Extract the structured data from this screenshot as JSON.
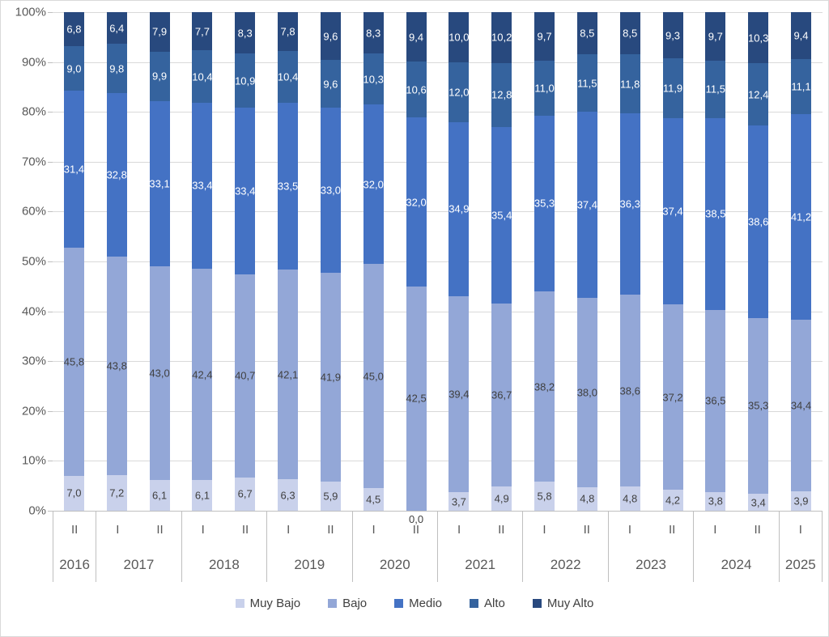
{
  "chart_data": {
    "type": "bar",
    "variant": "stacked-100-percent",
    "title": "",
    "xlabel": "",
    "ylabel": "",
    "ylim": [
      0,
      100
    ],
    "ytick_step": 10,
    "ytick_labels": [
      "0%",
      "10%",
      "20%",
      "30%",
      "40%",
      "50%",
      "60%",
      "70%",
      "80%",
      "90%",
      "100%"
    ],
    "grid": true,
    "legend_position": "bottom",
    "decimal_separator": ",",
    "x": [
      "2016-II",
      "2017-I",
      "2017-II",
      "2018-I",
      "2018-II",
      "2019-I",
      "2019-II",
      "2020-I",
      "2020-II",
      "2021-I",
      "2021-II",
      "2022-I",
      "2022-II",
      "2023-I",
      "2023-II",
      "2024-I",
      "2024-II",
      "2025-I"
    ],
    "categories": [
      {
        "year": "2016",
        "periods": [
          "II"
        ]
      },
      {
        "year": "2017",
        "periods": [
          "I",
          "II"
        ]
      },
      {
        "year": "2018",
        "periods": [
          "I",
          "II"
        ]
      },
      {
        "year": "2019",
        "periods": [
          "I",
          "II"
        ]
      },
      {
        "year": "2020",
        "periods": [
          "I",
          "II"
        ]
      },
      {
        "year": "2021",
        "periods": [
          "I",
          "II"
        ]
      },
      {
        "year": "2022",
        "periods": [
          "I",
          "II"
        ]
      },
      {
        "year": "2023",
        "periods": [
          "I",
          "II"
        ]
      },
      {
        "year": "2024",
        "periods": [
          "I",
          "II"
        ]
      },
      {
        "year": "2025",
        "periods": [
          "I"
        ]
      }
    ],
    "series": [
      {
        "name": "Muy Bajo",
        "color": "#C9D1EB",
        "label_color": "#404040",
        "values": [
          7.0,
          7.2,
          6.1,
          6.1,
          6.7,
          6.3,
          5.9,
          4.5,
          0.0,
          3.7,
          4.9,
          5.8,
          4.8,
          4.8,
          4.2,
          3.8,
          3.4,
          3.9
        ]
      },
      {
        "name": "Bajo",
        "color": "#93A7D7",
        "label_color": "#404040",
        "values": [
          45.8,
          43.8,
          43.0,
          42.4,
          40.7,
          42.1,
          41.9,
          45.0,
          42.5,
          39.4,
          36.7,
          38.2,
          38.0,
          38.6,
          37.2,
          36.5,
          35.3,
          34.4
        ]
      },
      {
        "name": "Medio",
        "color": "#4472C4",
        "label_color": "#FFFFFF",
        "values": [
          31.4,
          32.8,
          33.1,
          33.4,
          33.4,
          33.5,
          33.0,
          32.0,
          32.0,
          34.9,
          35.4,
          35.3,
          37.4,
          36.3,
          37.4,
          38.5,
          38.6,
          41.2
        ]
      },
      {
        "name": "Alto",
        "color": "#35639E",
        "label_color": "#FFFFFF",
        "values": [
          9.0,
          9.8,
          9.9,
          10.4,
          10.9,
          10.4,
          9.6,
          10.3,
          10.6,
          12.0,
          12.8,
          11.0,
          11.5,
          11.8,
          11.9,
          11.5,
          12.4,
          11.1
        ]
      },
      {
        "name": "Muy Alto",
        "color": "#28497E",
        "label_color": "#FFFFFF",
        "values": [
          6.8,
          6.4,
          7.9,
          7.7,
          8.3,
          7.8,
          9.6,
          8.3,
          9.4,
          10.0,
          10.2,
          9.7,
          8.5,
          8.5,
          9.3,
          9.7,
          10.3,
          9.4
        ]
      }
    ]
  },
  "colors": {
    "gridline": "#D9D9D9",
    "axis_line": "#BFBFBF",
    "axis_text": "#595959",
    "legend_text": "#404040",
    "background": "#FFFFFF"
  }
}
